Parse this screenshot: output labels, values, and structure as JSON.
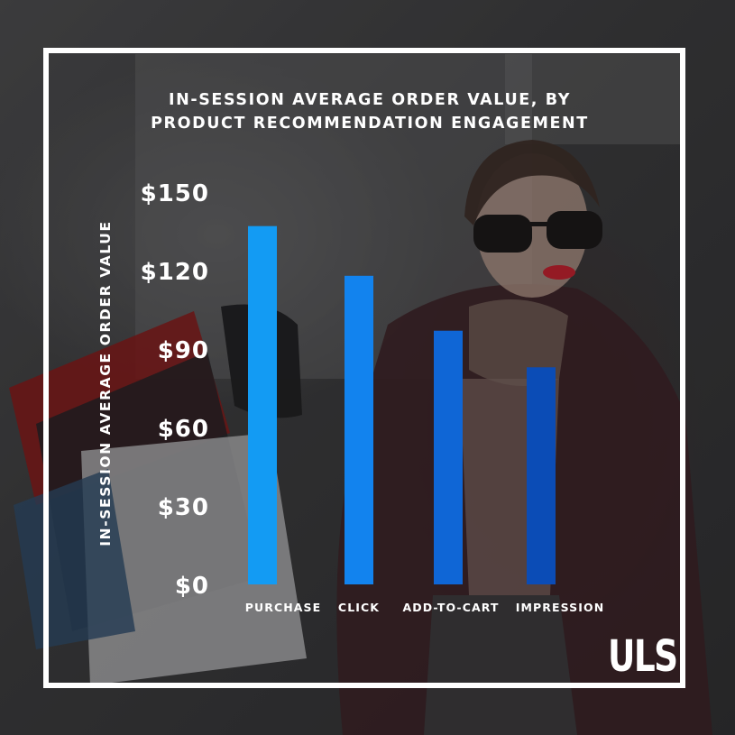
{
  "chart_data": {
    "type": "bar",
    "title_lines": [
      "IN-SESSION AVERAGE ORDER VALUE, BY",
      "PRODUCT RECOMMENDATION ENGAGEMENT"
    ],
    "ylabel": "IN-SESSION AVERAGE ORDER VALUE",
    "xlabel": "",
    "categories": [
      "PURCHASE",
      "CLICK",
      "ADD-TO-CART",
      "IMPRESSION"
    ],
    "values": [
      137,
      118,
      97,
      83
    ],
    "ylim": [
      0,
      150
    ],
    "yticks": [
      0,
      30,
      60,
      90,
      120,
      150
    ],
    "ytick_labels": [
      "$0",
      "$30",
      "$60",
      "$90",
      "$120",
      "$150"
    ],
    "bar_colors": [
      "#139bf3",
      "#1283ee",
      "#0f66d6",
      "#0b4cb6"
    ],
    "grid": false,
    "legend": "none"
  },
  "brand": {
    "logo_text": "ULS"
  },
  "colors": {
    "frame": "#ffffff",
    "text": "#ffffff"
  }
}
